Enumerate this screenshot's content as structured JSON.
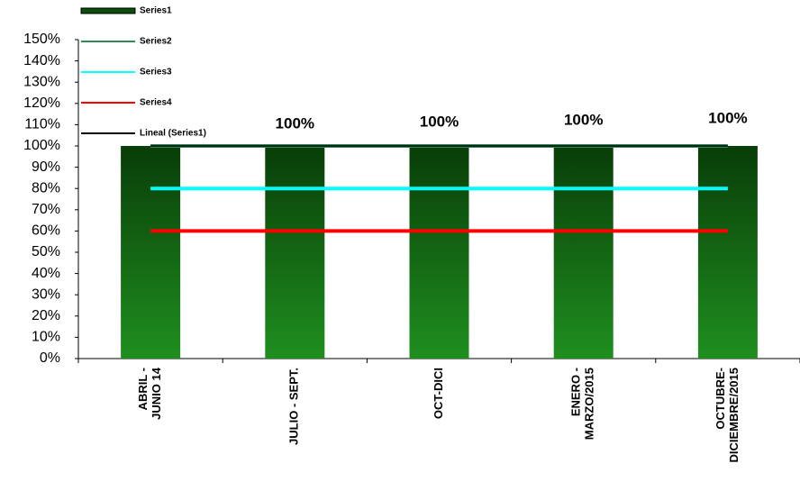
{
  "chart_data": {
    "type": "bar",
    "categories": [
      "ABRIL - JUNIO 14",
      "JULIO - SEPT.",
      "OCT-DICI",
      "ENERO - MARZO/2015",
      "OCTUBRE-DICIEMBRE/2015"
    ],
    "series": [
      {
        "name": "Series1",
        "color": "#0b4d0b",
        "kind": "bar",
        "values": [
          100,
          100,
          100,
          100,
          100
        ],
        "value_labels": [
          null,
          "100%",
          "100%",
          "100%",
          "100%"
        ]
      },
      {
        "name": "Series2",
        "color": "#2e8b57",
        "kind": "line",
        "values": [
          100,
          100,
          100,
          100,
          100
        ]
      },
      {
        "name": "Series3",
        "color": "#00ffff",
        "kind": "line",
        "values": [
          80,
          80,
          80,
          80,
          80
        ]
      },
      {
        "name": "Series4",
        "color": "#ff0000",
        "kind": "line",
        "values": [
          60,
          60,
          60,
          60,
          60
        ]
      },
      {
        "name": "Lineal (Series1)",
        "color": "#000000",
        "kind": "line",
        "values": [
          100,
          100,
          100,
          100,
          100
        ]
      }
    ],
    "ylim": [
      0,
      150
    ],
    "yticks": [
      {
        "value": 0,
        "label": "0%"
      },
      {
        "value": 10,
        "label": "10%"
      },
      {
        "value": 20,
        "label": "20%"
      },
      {
        "value": 30,
        "label": "30%"
      },
      {
        "value": 40,
        "label": "40%"
      },
      {
        "value": 50,
        "label": "50%"
      },
      {
        "value": 60,
        "label": "60%"
      },
      {
        "value": 70,
        "label": "70%"
      },
      {
        "value": 80,
        "label": "80%"
      },
      {
        "value": 90,
        "label": "90%"
      },
      {
        "value": 100,
        "label": "100%"
      },
      {
        "value": 110,
        "label": "110%"
      },
      {
        "value": 120,
        "label": "120%"
      },
      {
        "value": 130,
        "label": "130%"
      },
      {
        "value": 140,
        "label": "140%"
      },
      {
        "value": 150,
        "label": "150%"
      }
    ],
    "grid": false
  }
}
